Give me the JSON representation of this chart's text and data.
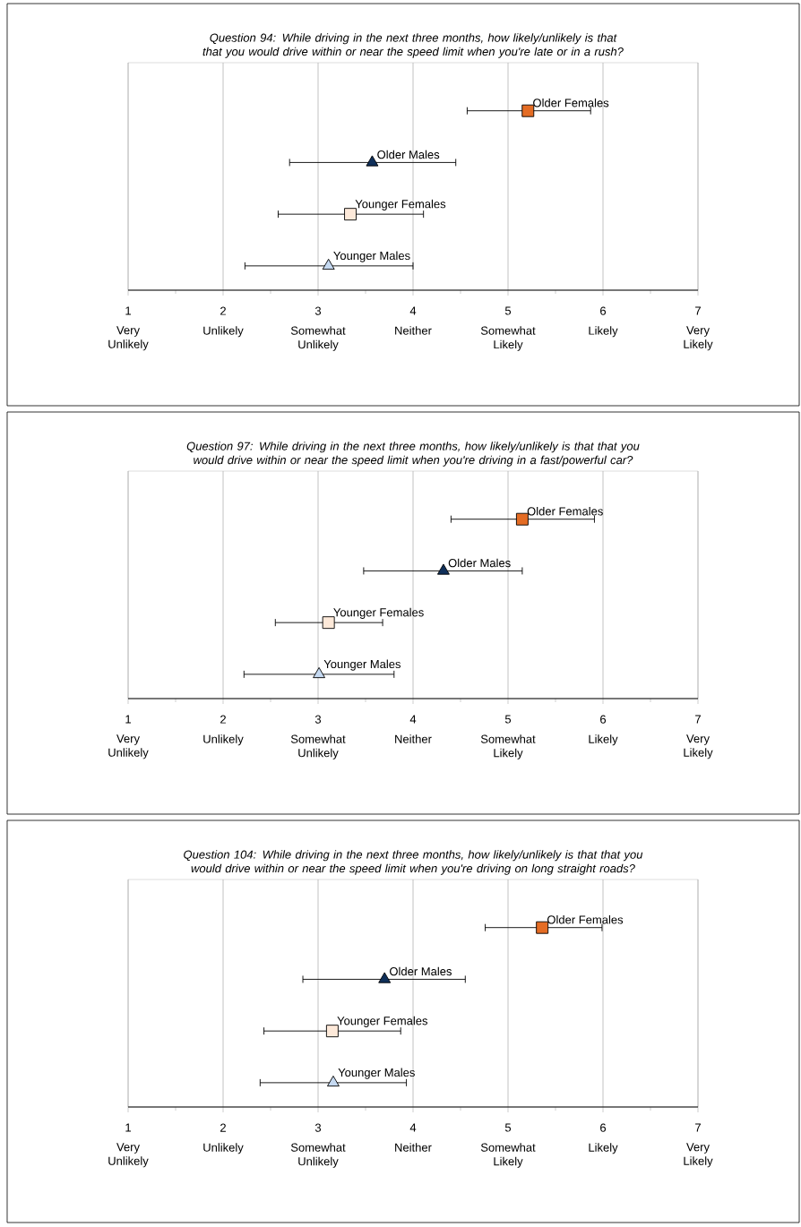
{
  "chart_data": [
    {
      "type": "scatter",
      "title": "Question 94: While driving in the next three months, how likely/unlikely is that that you would drive within or near the speed limit when you're late or in a rush?",
      "orientation": "horizontal",
      "categories": [
        null,
        null,
        null,
        null
      ],
      "xlim": [
        1,
        7
      ],
      "xticks": [
        1,
        2,
        3,
        4,
        5,
        6,
        7
      ],
      "grid": "x",
      "annotations": [
        "Very Unlikely",
        "Unlikely",
        "Somewhat Unlikely",
        "Neither",
        "Somewhat Likely",
        "Likely",
        "Very Likely"
      ],
      "series": [
        {
          "name": "Older Females",
          "color": "#e46c24",
          "marker": "square",
          "values": [
            5.21,
            null,
            null,
            null
          ],
          "errors": [
            [
              4.57,
              5.87
            ],
            null,
            null,
            null
          ]
        },
        {
          "name": "Older Males",
          "color": "#0f2f5a",
          "marker": "triangle",
          "values": [
            null,
            3.57,
            null,
            null
          ],
          "errors": [
            null,
            [
              2.7,
              4.45
            ],
            null,
            null
          ]
        },
        {
          "name": "Younger Females",
          "color": "#fde9d9",
          "marker": "square",
          "values": [
            null,
            null,
            3.34,
            null
          ],
          "errors": [
            null,
            null,
            [
              2.58,
              4.11
            ],
            null
          ]
        },
        {
          "name": "Younger Males",
          "color": "#c5d9f1",
          "marker": "triangle",
          "values": [
            null,
            null,
            null,
            3.11
          ],
          "errors": [
            null,
            null,
            null,
            [
              2.23,
              4.0
            ]
          ]
        }
      ]
    },
    {
      "type": "scatter",
      "title": "Question 97: While driving in the next three months, how likely/unlikely is that that you would drive within or near the speed limit when you're driving in a fast/powerful car?",
      "orientation": "horizontal",
      "categories": [
        null,
        null,
        null,
        null
      ],
      "xlim": [
        1,
        7
      ],
      "xticks": [
        1,
        2,
        3,
        4,
        5,
        6,
        7
      ],
      "grid": "x",
      "annotations": [
        "Very Unlikely",
        "Unlikely",
        "Somewhat Unlikely",
        "Neither",
        "Somewhat Likely",
        "Likely",
        "Very Likely"
      ],
      "series": [
        {
          "name": "Older Females",
          "color": "#e46c24",
          "marker": "square",
          "values": [
            5.15,
            null,
            null,
            null
          ],
          "errors": [
            [
              4.4,
              5.91
            ],
            null,
            null,
            null
          ]
        },
        {
          "name": "Older Males",
          "color": "#0f2f5a",
          "marker": "triangle",
          "values": [
            null,
            4.32,
            null,
            null
          ],
          "errors": [
            null,
            [
              3.48,
              5.15
            ],
            null,
            null
          ]
        },
        {
          "name": "Younger Females",
          "color": "#fde9d9",
          "marker": "square",
          "values": [
            null,
            null,
            3.11,
            null
          ],
          "errors": [
            null,
            null,
            [
              2.55,
              3.68
            ],
            null
          ]
        },
        {
          "name": "Younger Males",
          "color": "#c5d9f1",
          "marker": "triangle",
          "values": [
            null,
            null,
            null,
            3.01
          ],
          "errors": [
            null,
            null,
            null,
            [
              2.22,
              3.8
            ]
          ]
        }
      ]
    },
    {
      "type": "scatter",
      "title": "Question 104: While driving in the next three months, how likely/unlikely is that that you would drive within or near the speed limit when you're driving on long straight roads?",
      "orientation": "horizontal",
      "categories": [
        null,
        null,
        null,
        null
      ],
      "xlim": [
        1,
        7
      ],
      "xticks": [
        1,
        2,
        3,
        4,
        5,
        6,
        7
      ],
      "grid": "x",
      "annotations": [
        "Very Unlikely",
        "Unlikely",
        "Somewhat Unlikely",
        "Neither",
        "Somewhat Likely",
        "Likely",
        "Very Likely"
      ],
      "series": [
        {
          "name": "Older Females",
          "color": "#e46c24",
          "marker": "square",
          "values": [
            5.36,
            null,
            null,
            null
          ],
          "errors": [
            [
              4.76,
              5.99
            ],
            null,
            null,
            null
          ]
        },
        {
          "name": "Older Males",
          "color": "#0f2f5a",
          "marker": "triangle",
          "values": [
            null,
            3.7,
            null,
            null
          ],
          "errors": [
            null,
            [
              2.84,
              4.55
            ],
            null,
            null
          ]
        },
        {
          "name": "Younger Females",
          "color": "#fde9d9",
          "marker": "square",
          "values": [
            null,
            null,
            3.15,
            null
          ],
          "errors": [
            null,
            null,
            [
              2.43,
              3.87
            ],
            null
          ]
        },
        {
          "name": "Younger Males",
          "color": "#c5d9f1",
          "marker": "triangle",
          "values": [
            null,
            null,
            null,
            3.16
          ],
          "errors": [
            null,
            null,
            null,
            [
              2.39,
              3.93
            ]
          ]
        }
      ]
    }
  ]
}
